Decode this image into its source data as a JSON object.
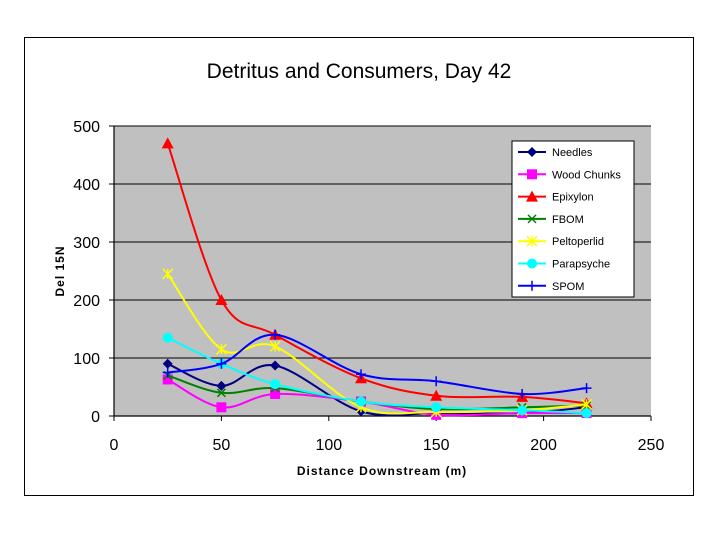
{
  "chart_data": {
    "type": "line",
    "title": "Detritus and Consumers, Day 42",
    "xlabel": "Distance Downstream  (m)",
    "ylabel": "Del 15N",
    "xlim": [
      0,
      250
    ],
    "ylim": [
      0,
      500
    ],
    "x_ticks": [
      "0",
      "50",
      "100",
      "150",
      "200",
      "250"
    ],
    "y_ticks": [
      "0",
      "100",
      "200",
      "300",
      "400",
      "500"
    ],
    "grid": "horizontal",
    "legend_position": "right",
    "plot_background": "#c0c0c0",
    "series": [
      {
        "name": "Needles",
        "color": "#000080",
        "marker": "diamond",
        "x": [
          25,
          50,
          75,
          115,
          150,
          190,
          220
        ],
        "y": [
          90,
          52,
          87,
          8,
          5,
          5,
          15
        ]
      },
      {
        "name": "Wood Chunks",
        "color": "#ff00ff",
        "marker": "square",
        "x": [
          25,
          50,
          75,
          115,
          150,
          190,
          220
        ],
        "y": [
          63,
          15,
          38,
          25,
          2,
          5,
          5
        ]
      },
      {
        "name": "Epixylon",
        "color": "#ff0000",
        "marker": "triangle",
        "x": [
          25,
          50,
          75,
          115,
          150,
          190,
          220
        ],
        "y": [
          470,
          200,
          140,
          65,
          35,
          33,
          22
        ]
      },
      {
        "name": "FBOM",
        "color": "#008000",
        "marker": "x",
        "x": [
          25,
          50,
          75,
          115,
          150,
          190,
          220
        ],
        "y": [
          70,
          40,
          48,
          25,
          12,
          15,
          18
        ]
      },
      {
        "name": "Peltoperlid",
        "color": "#ffff00",
        "marker": "star",
        "x": [
          25,
          50,
          75,
          115,
          150,
          190,
          220
        ],
        "y": [
          245,
          115,
          120,
          15,
          7,
          10,
          20
        ]
      },
      {
        "name": "Parapsyche",
        "color": "#00ffff",
        "marker": "circle",
        "x": [
          25,
          50,
          75,
          115,
          150,
          190,
          220
        ],
        "y": [
          135,
          90,
          55,
          25,
          15,
          10,
          5
        ]
      },
      {
        "name": "SPOM",
        "color": "#0000ff",
        "marker": "plus",
        "x": [
          25,
          50,
          75,
          115,
          150,
          190,
          220
        ],
        "y": [
          75,
          90,
          140,
          72,
          60,
          38,
          48
        ]
      }
    ]
  }
}
